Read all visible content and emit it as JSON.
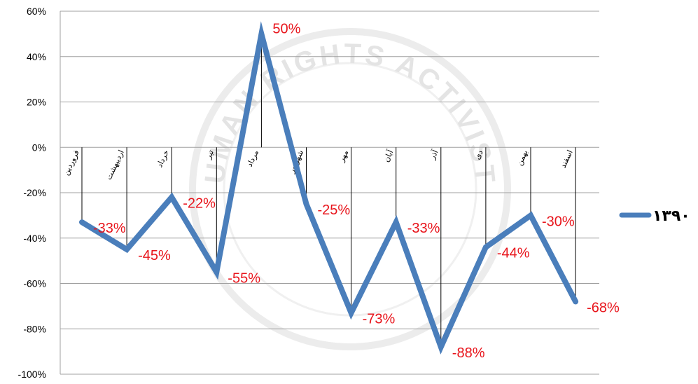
{
  "chart_data": {
    "type": "line",
    "categories": [
      "فروردین",
      "اردیبهشت",
      "خرداد",
      "تیر",
      "مرداد",
      "شهریور",
      "مهر",
      "آبان",
      "آذر",
      "دی",
      "بهمن",
      "اسفند"
    ],
    "series": [
      {
        "name": "۱۳۹۰",
        "values": [
          -33,
          -45,
          -22,
          -55,
          50,
          -25,
          -73,
          -33,
          -88,
          -44,
          -30,
          -68
        ],
        "labels": [
          "-33%",
          "-45%",
          "-22%",
          "-55%",
          "50%",
          "-25%",
          "-73%",
          "-33%",
          "-88%",
          "-44%",
          "-30%",
          "-68%"
        ]
      }
    ],
    "yticks": [
      "60%",
      "40%",
      "20%",
      "0%",
      "-20%",
      "-40%",
      "-60%",
      "-80%",
      "-100%"
    ],
    "ylim": [
      -100,
      60
    ],
    "grid": true,
    "legend": "right",
    "colors": {
      "line": "#4a7ebb",
      "labels": "#e8141b",
      "grid": "#a0a0a0"
    },
    "watermark": "HUMAN RIGHTS ACTIVISTS"
  }
}
